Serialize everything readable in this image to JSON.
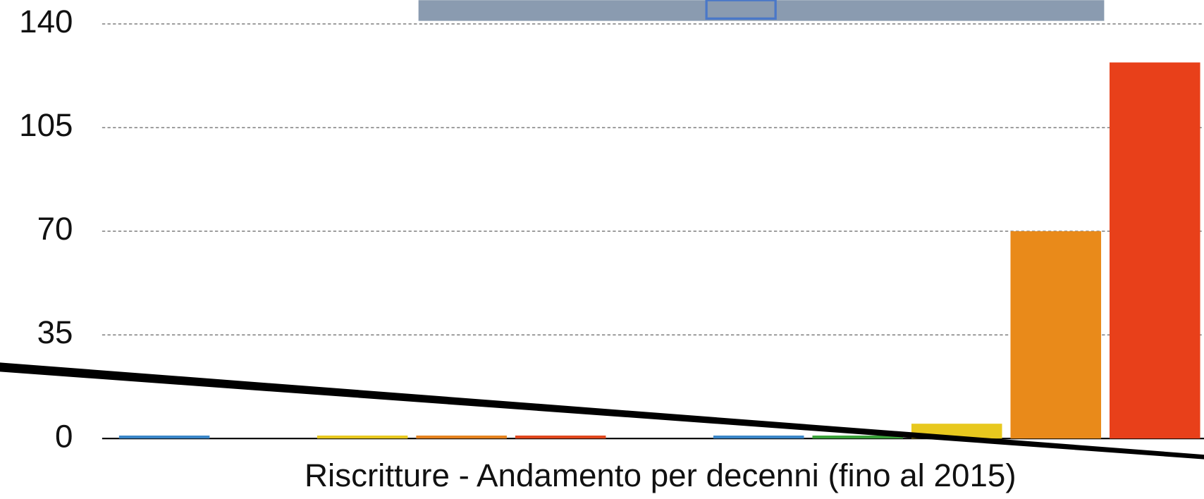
{
  "chart_data": {
    "type": "bar",
    "title": "Riscritture - Andamento per decenni (fino al 2015)",
    "categories": [
      null,
      null,
      null,
      null,
      null,
      null,
      null,
      null,
      null,
      null,
      null
    ],
    "values": [
      1,
      null,
      1,
      1,
      1,
      null,
      1,
      1,
      5,
      70,
      127
    ],
    "colors": [
      "#3a86c8",
      null,
      "#e8c81e",
      "#e5821e",
      "#e0461c",
      null,
      "#3a86c8",
      "#3aa23a",
      "#e8c81e",
      "#e98a1a",
      "#e8401a"
    ],
    "ylim": [
      0,
      140
    ],
    "yticks": [
      0,
      35,
      70,
      105,
      140
    ],
    "grid": true
  }
}
